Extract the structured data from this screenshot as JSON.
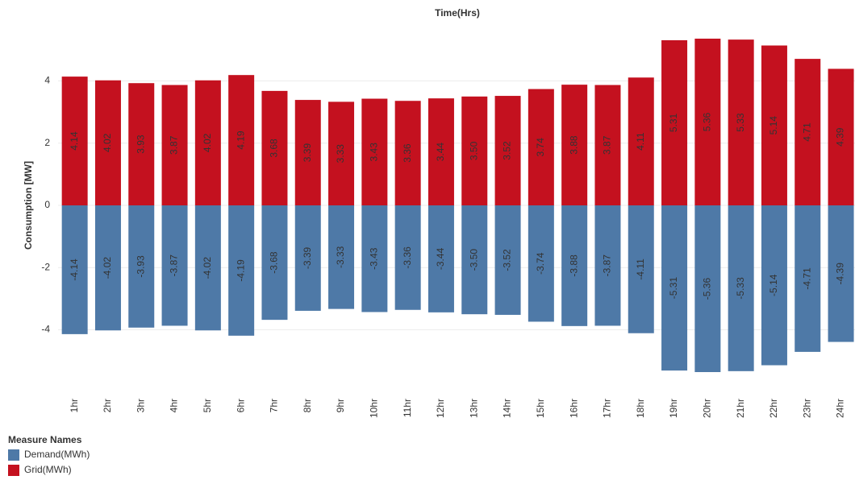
{
  "chart_data": {
    "type": "bar",
    "title": "Time(Hrs)",
    "y_label": "Consumption [MW]",
    "categories": [
      "1hr",
      "2hr",
      "3hr",
      "4hr",
      "5hr",
      "6hr",
      "7hr",
      "8hr",
      "9hr",
      "10hr",
      "11hr",
      "12hr",
      "13hr",
      "14hr",
      "15hr",
      "16hr",
      "17hr",
      "18hr",
      "19hr",
      "20hr",
      "21hr",
      "22hr",
      "23hr",
      "24hr"
    ],
    "series": [
      {
        "name": "Demand(MWh)",
        "color": "#4e79a7",
        "values": [
          -4.14,
          -4.02,
          -3.93,
          -3.87,
          -4.02,
          -4.19,
          -3.68,
          -3.39,
          -3.33,
          -3.43,
          -3.36,
          -3.44,
          -3.5,
          -3.52,
          -3.74,
          -3.88,
          -3.87,
          -4.11,
          -5.31,
          -5.36,
          -5.33,
          -5.14,
          -4.71,
          -4.39
        ],
        "value_labels": [
          "-4.14",
          "-4.02",
          "-3.93",
          "-3.87",
          "-4.02",
          "-4.19",
          "-3.68",
          "-3.39",
          "-3.33",
          "-3.43",
          "-3.36",
          "-3.44",
          "-3.50",
          "-3.52",
          "-3.74",
          "-3.88",
          "-3.87",
          "-4.11",
          "-5.31",
          "-5.36",
          "-5.33",
          "-5.14",
          "-4.71",
          "-4.39"
        ]
      },
      {
        "name": "Grid(MWh)",
        "color": "#c4111f",
        "values": [
          4.14,
          4.02,
          3.93,
          3.87,
          4.02,
          4.19,
          3.68,
          3.39,
          3.33,
          3.43,
          3.36,
          3.44,
          3.5,
          3.52,
          3.74,
          3.88,
          3.87,
          4.11,
          5.31,
          5.36,
          5.33,
          5.14,
          4.71,
          4.39
        ],
        "value_labels": [
          "4.14",
          "4.02",
          "3.93",
          "3.87",
          "4.02",
          "4.19",
          "3.68",
          "3.39",
          "3.33",
          "3.43",
          "3.36",
          "3.44",
          "3.50",
          "3.52",
          "3.74",
          "3.88",
          "3.87",
          "4.11",
          "5.31",
          "5.36",
          "5.33",
          "5.14",
          "4.71",
          "4.39"
        ]
      }
    ],
    "ylim": [
      -5.8,
      5.8
    ],
    "yticks": [
      -4,
      -2,
      0,
      2,
      4
    ],
    "grid": true,
    "legend_title": "Measure Names",
    "legend": "bottom-left"
  }
}
